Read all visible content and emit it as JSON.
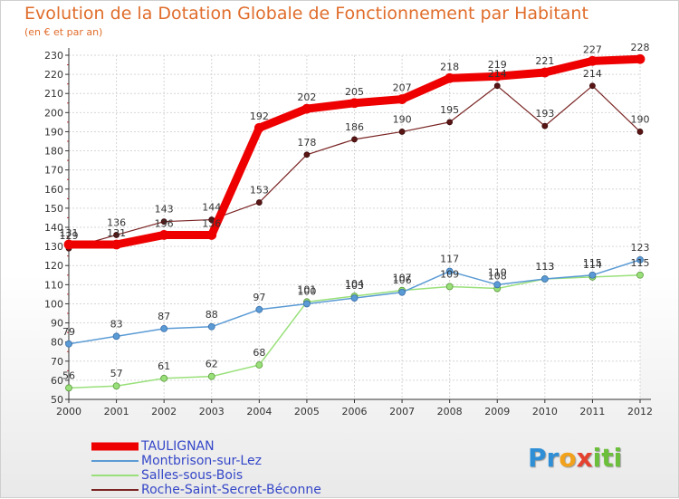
{
  "chart_data": {
    "type": "line",
    "title": "Evolution de la Dotation Globale de Fonctionnement par Habitant",
    "subtitle": "(en € et par an)",
    "x": [
      "2000",
      "2001",
      "2002",
      "2003",
      "2004",
      "2005",
      "2006",
      "2007",
      "2008",
      "2009",
      "2010",
      "2011",
      "2012"
    ],
    "ylim": [
      50,
      230
    ],
    "yticks": [
      50,
      60,
      70,
      80,
      90,
      100,
      110,
      120,
      130,
      140,
      150,
      160,
      170,
      180,
      190,
      200,
      210,
      220,
      230
    ],
    "grid": true,
    "legend_position": "bottom-left",
    "series": [
      {
        "name": "TAULIGNAN",
        "color": "#ee0000",
        "values": [
          131,
          131,
          136,
          136,
          192,
          202,
          205,
          207,
          218,
          219,
          221,
          227,
          228
        ]
      },
      {
        "name": "Montbrison-sur-Lez",
        "color": "#5b9bd5",
        "values": [
          79,
          83,
          87,
          88,
          97,
          100,
          103,
          106,
          117,
          110,
          113,
          115,
          123
        ]
      },
      {
        "name": "Salles-sous-Bois",
        "color": "#99e07a",
        "values": [
          56,
          57,
          61,
          62,
          68,
          101,
          104,
          107,
          109,
          108,
          113,
          114,
          115
        ]
      },
      {
        "name": "Roche-Saint-Secret-Béconne",
        "color": "#7a2424",
        "values": [
          129,
          136,
          143,
          144,
          153,
          178,
          186,
          190,
          195,
          214,
          193,
          214,
          190
        ]
      }
    ]
  },
  "logo": {
    "p1": "Pr",
    "p2": "o",
    "p3": "x",
    "p4": "iti"
  }
}
